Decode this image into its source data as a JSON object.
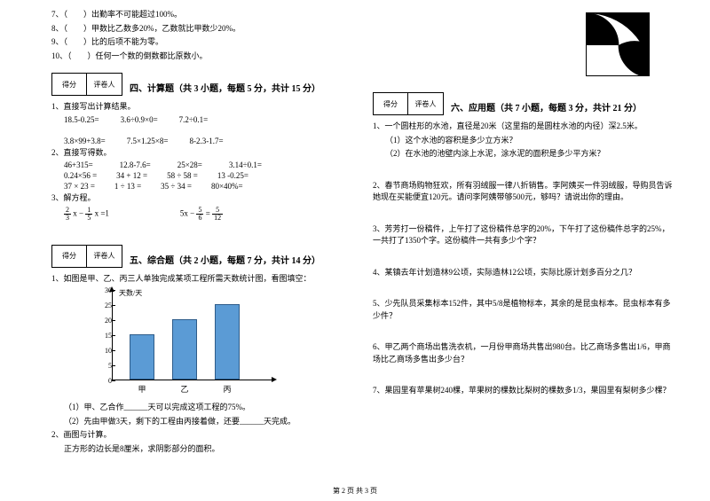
{
  "left": {
    "tf": [
      "7、（　　）出勤率不可能超过100%。",
      "8、（　　）甲数比乙数多20%，乙数就比甲数少20%。",
      "9、（　　）比的后项不能为零。",
      "10、（　　）任何一个数的倒数都比原数小。"
    ],
    "scoreLabels": {
      "a": "得分",
      "b": "评卷人"
    },
    "sec4_title": "四、计算题（共 3 小题，每题 5 分，共计 15 分）",
    "q1": "1、直接写出计算结果。",
    "q1r1": [
      "18.5-0.25=",
      "3.6÷0.9×0=",
      "7.2÷0.1="
    ],
    "q1r2": [
      "3.8×99+3.8=",
      "7.5×1.25×8=",
      "8-2.3-1.7="
    ],
    "q2": "2、直接写得数。",
    "q2rows": [
      [
        "46+315=",
        "12.8-7.6=",
        "25×28=",
        "3.14÷0.1="
      ],
      [
        "0.24×56 =",
        "34 + 12 =",
        "58 ÷ 58 =",
        "13 -0.25="
      ],
      [
        "37 × 23 =",
        "1 ÷ 13 =",
        "35 ÷ 34 =",
        "80×40%="
      ]
    ],
    "q3": "3、解方程。",
    "q3a_lhs_1": "2",
    "q3a_lhs_1d": "3",
    "q3a_mid": "x −",
    "q3a_lhs_2": "1",
    "q3a_lhs_2d": "5",
    "q3a_rhs": "x =1",
    "q3b_lhs": "5x −",
    "q3b_n1": "5",
    "q3b_d1": "6",
    "q3b_eq": "=",
    "q3b_n2": "5",
    "q3b_d2": "12",
    "sec5_title": "五、综合题（共 2 小题，每题 7 分，共计 14 分）",
    "s5q1": "1、如图是甲、乙、丙三人单独完成某项工程所需天数统计图，看图填空：",
    "chart": {
      "y_title": "天数/天",
      "yticks": [
        0,
        5,
        10,
        15,
        20,
        25,
        30
      ],
      "ylim": [
        0,
        30
      ],
      "bars": [
        {
          "label": "甲",
          "value": 15,
          "color": "#5b9bd5"
        },
        {
          "label": "乙",
          "value": 20,
          "color": "#5b9bd5"
        },
        {
          "label": "丙",
          "value": 25,
          "color": "#5b9bd5"
        }
      ],
      "bar_positions": [
        48,
        96,
        144
      ]
    },
    "s5q1a": "（1）甲、乙合作______天可以完成这项工程的75%。",
    "s5q1b": "（2）先由甲做3天，剩下的工程由丙接着做，还要______天完成。",
    "s5q2": "2、画图与计算。",
    "s5q2a": "正方形的边长是8厘米，求阴影部分的面积。"
  },
  "right": {
    "scoreLabels": {
      "a": "得分",
      "b": "评卷人"
    },
    "sec6_title": "六、应用题（共 7 小题，每题 3 分，共计 21 分）",
    "q1": "1、一个圆柱形的水池，直径是20米（这里指的是圆柱水池的内径）深2.5米。",
    "q1a": "（1）这个水池的容积是多少立方米？",
    "q1b": "（2）在水池的池壁内涂上水泥，涂水泥的面积是多少平方米？",
    "q2": "2、春节商场购物狂欢，所有羽绒服一律八折销售。李阿姨买一件羽绒服，导购员告诉她现在买能便宜120元。请问李阿姨带够500元，够吗？请说出你的理由。",
    "q3": "3、芳芳打一份稿件，上午打了这份稿件总字的20%，下午打了这份稿件总字的25%，一共打了1350个字。这份稿件一共有多少个字？",
    "q4": "4、某镇去年计划造林9公顷，实际造林12公顷，实际比原计划多百分之几？",
    "q5": "5、少先队员采集标本152件，其中5/8是植物标本，其余的是昆虫标本。昆虫标本有多少件？",
    "q6": "6、甲乙两个商场出售洗衣机，一月份甲商场共售出980台。比乙商场多售出1/6，甲商场比乙商场多售出多少台？",
    "q7": "7、果园里有苹果树240棵，苹果树的棵数比梨树的棵数多1/3，果园里有梨树多少棵？"
  },
  "footer": "第 2 页 共 3 页"
}
